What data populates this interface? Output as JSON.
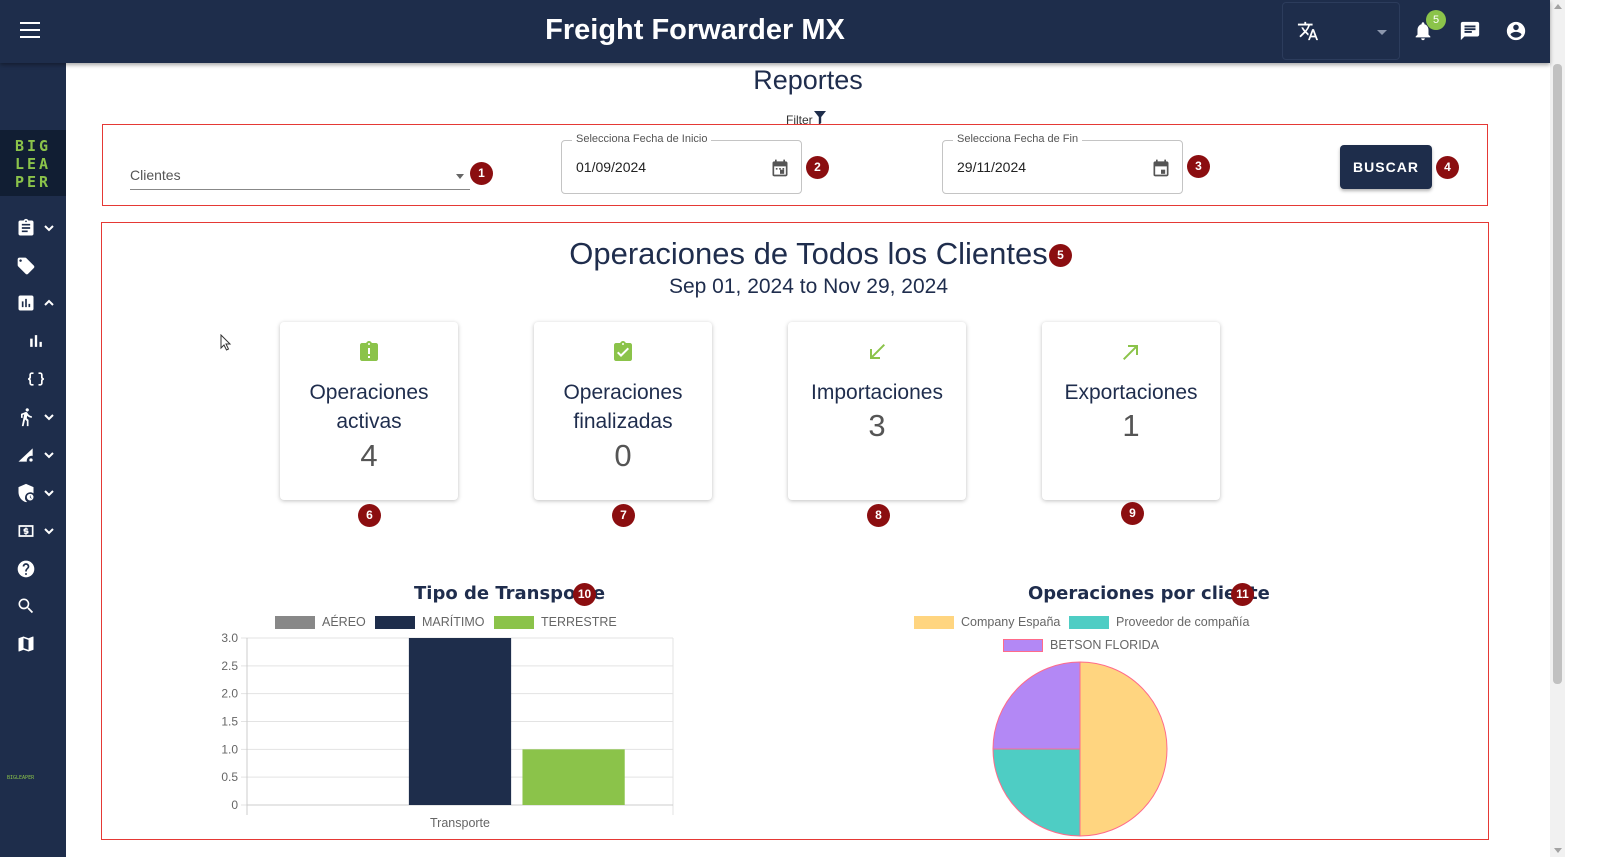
{
  "header": {
    "title": "Freight Forwarder MX",
    "notification_count": "5"
  },
  "sidebar": {
    "logo_lines": [
      "BIG",
      "LEA",
      "PER"
    ],
    "mini_logo": "BIGLEAPER",
    "items": [
      "clipboard-icon",
      "tag-icon",
      "report-icon",
      "bar-chart-icon",
      "loop-icon",
      "person-icon",
      "route-settings-icon",
      "shield-clock-icon",
      "money-icon",
      "help-icon",
      "search-icon",
      "map-icon"
    ]
  },
  "page": {
    "title": "Reportes",
    "filter_label": "Filter"
  },
  "filters": {
    "client_select": "Clientes",
    "start_label": "Selecciona Fecha de Inicio",
    "start_value": "01/09/2024",
    "end_label": "Selecciona Fecha de Fin",
    "end_value": "29/11/2024",
    "search_button": "BUSCAR"
  },
  "markers": [
    "1",
    "2",
    "3",
    "4",
    "5",
    "6",
    "7",
    "8",
    "9",
    "10",
    "11"
  ],
  "summary": {
    "title": "Operaciones de Todos los Clientes",
    "range": "Sep 01, 2024 to Nov 29, 2024",
    "cards": [
      {
        "label_1": "Operaciones",
        "label_2": "activas",
        "value": "4",
        "icon": "clipboard-alert-icon"
      },
      {
        "label_1": "Operaciones",
        "label_2": "finalizadas",
        "value": "0",
        "icon": "clipboard-check-icon"
      },
      {
        "label_1": "Importaciones",
        "value": "3",
        "icon": "arrow-down-left-icon"
      },
      {
        "label_1": "Exportaciones",
        "value": "1",
        "icon": "arrow-up-right-icon"
      }
    ]
  },
  "colors": {
    "navy": "#1e2d4b",
    "green": "#8bc34a",
    "gray": "#888888",
    "yellow": "#ffd580",
    "teal": "#4ecdc4",
    "purple": "#b388f5"
  },
  "chart_data": [
    {
      "type": "bar",
      "title": "Tipo de Transporte",
      "categories": [
        "Transporte"
      ],
      "series": [
        {
          "name": "AÉREO",
          "values": [
            0
          ]
        },
        {
          "name": "MARÍTIMO",
          "values": [
            3
          ]
        },
        {
          "name": "TERRESTRE",
          "values": [
            1
          ]
        }
      ],
      "ylim": [
        0,
        3
      ],
      "y_ticks": [
        "3.0",
        "2.5",
        "2.0",
        "1.5",
        "1.0",
        "0.5",
        "0"
      ],
      "grid": true,
      "legend": "top"
    },
    {
      "type": "pie",
      "title": "Operaciones por cliente",
      "labels": [
        "Company España",
        "Proveedor de compañía",
        "BETSON FLORIDA"
      ],
      "values": [
        2,
        1,
        1
      ],
      "legend": "top"
    }
  ]
}
